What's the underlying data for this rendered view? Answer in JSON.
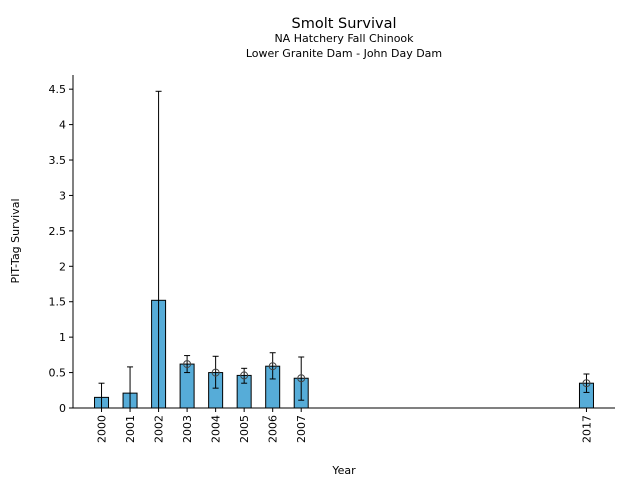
{
  "chart_data": {
    "type": "bar",
    "title": "Smolt Survival",
    "subtitle": [
      "NA Hatchery Fall Chinook",
      "Lower Granite Dam - John Day Dam"
    ],
    "xlabel": "Year",
    "ylabel": "PIT-Tag Survival",
    "xlim": [
      1999,
      2018
    ],
    "ylim": [
      0,
      4.7
    ],
    "yticks": [
      0,
      0.5,
      1,
      1.5,
      2,
      2.5,
      3,
      3.5,
      4,
      4.5
    ],
    "ytick_labels": [
      "0",
      "0.5",
      "1",
      "1.5",
      "2",
      "2.5",
      "3",
      "3.5",
      "4",
      "4.5"
    ],
    "bar_color": "#56acd8",
    "bars": [
      {
        "year": "2000",
        "x": 2000,
        "value": 0.15,
        "err_low": 0.0,
        "err_high": 0.35,
        "marker": false
      },
      {
        "year": "2001",
        "x": 2001,
        "value": 0.21,
        "err_low": 0.0,
        "err_high": 0.58,
        "marker": false
      },
      {
        "year": "2002",
        "x": 2002,
        "value": 1.52,
        "err_low": 0.0,
        "err_high": 4.47,
        "marker": false
      },
      {
        "year": "2003",
        "x": 2003,
        "value": 0.62,
        "err_low": 0.5,
        "err_high": 0.74,
        "marker": true
      },
      {
        "year": "2004",
        "x": 2004,
        "value": 0.5,
        "err_low": 0.28,
        "err_high": 0.73,
        "marker": true
      },
      {
        "year": "2005",
        "x": 2005,
        "value": 0.46,
        "err_low": 0.35,
        "err_high": 0.56,
        "marker": true
      },
      {
        "year": "2006",
        "x": 2006,
        "value": 0.59,
        "err_low": 0.41,
        "err_high": 0.78,
        "marker": true
      },
      {
        "year": "2007",
        "x": 2007,
        "value": 0.42,
        "err_low": 0.11,
        "err_high": 0.72,
        "marker": true
      },
      {
        "year": "2017",
        "x": 2017,
        "value": 0.35,
        "err_low": 0.22,
        "err_high": 0.48,
        "marker": true
      }
    ]
  }
}
